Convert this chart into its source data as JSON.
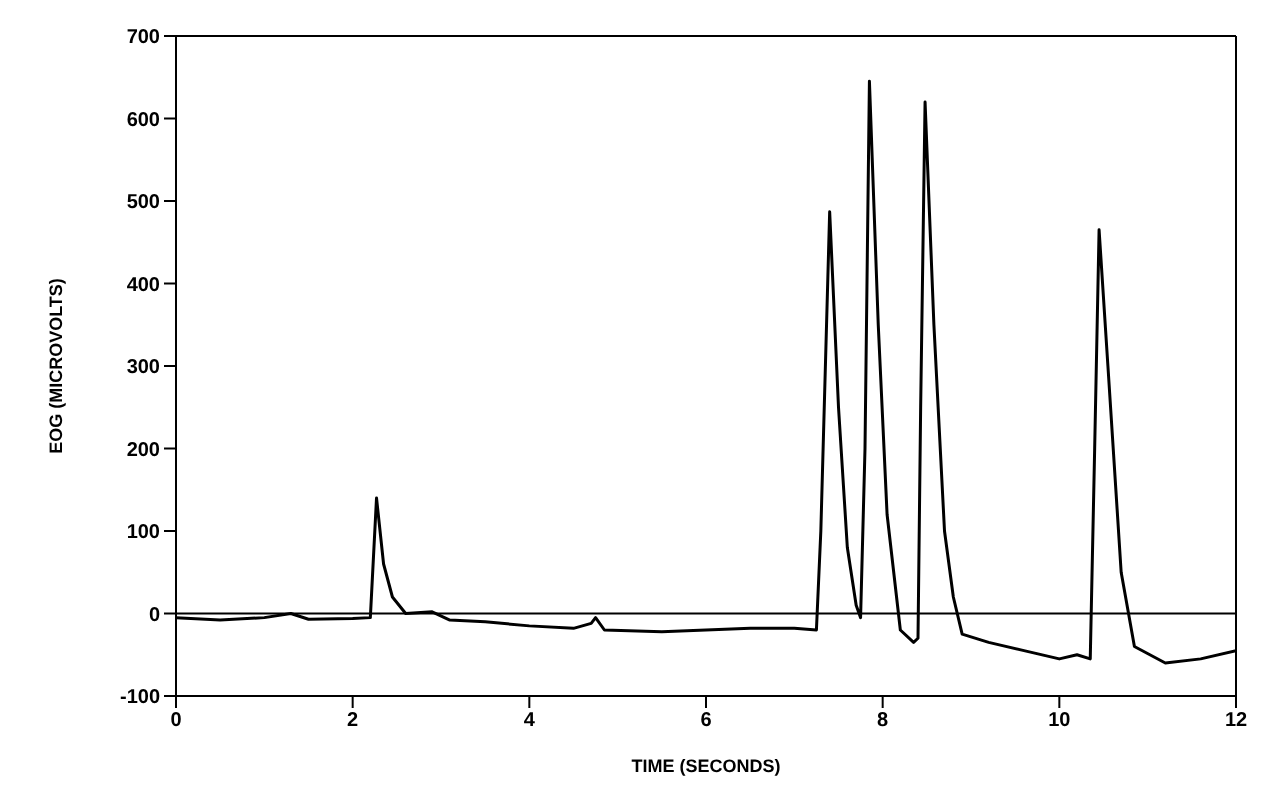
{
  "chart_data": {
    "type": "line",
    "xlabel": "TIME (SECONDS)",
    "ylabel": "EOG (MICROVOLTS)",
    "x": [
      0,
      0.5,
      1.0,
      1.3,
      1.5,
      2.0,
      2.2,
      2.27,
      2.35,
      2.45,
      2.6,
      2.9,
      3.1,
      3.5,
      4.0,
      4.5,
      4.7,
      4.75,
      4.85,
      5.5,
      6.5,
      7.0,
      7.25,
      7.3,
      7.4,
      7.5,
      7.6,
      7.7,
      7.75,
      7.8,
      7.85,
      7.95,
      8.05,
      8.2,
      8.35,
      8.4,
      8.43,
      8.48,
      8.58,
      8.7,
      8.8,
      8.9,
      9.2,
      9.6,
      10.0,
      10.2,
      10.35,
      10.4,
      10.45,
      10.55,
      10.7,
      10.85,
      11.2,
      11.6,
      12
    ],
    "series": [
      {
        "color": "#000000",
        "values": [
          -5,
          -8,
          -5,
          0,
          -7,
          -6,
          -5,
          140,
          60,
          20,
          0,
          2,
          -8,
          -10,
          -15,
          -18,
          -12,
          -5,
          -20,
          -22,
          -18,
          -18,
          -20,
          100,
          487,
          250,
          80,
          10,
          -5,
          200,
          645,
          350,
          120,
          -20,
          -35,
          -30,
          250,
          620,
          350,
          100,
          20,
          -25,
          -35,
          -45,
          -55,
          -50,
          -55,
          200,
          465,
          300,
          50,
          -40,
          -60,
          -55,
          -45
        ]
      }
    ],
    "xlim": [
      0,
      12
    ],
    "xticks": [
      0,
      2,
      4,
      6,
      8,
      10,
      12
    ],
    "ylim": [
      -100,
      700
    ],
    "yticks": [
      -100,
      0,
      100,
      200,
      300,
      400,
      500,
      600,
      700
    ],
    "ref_lines": [
      {
        "axis": "y",
        "value": 0,
        "color": "#000000"
      }
    ],
    "grid": false,
    "legend": false,
    "marker": "none",
    "line_style": "solid"
  }
}
